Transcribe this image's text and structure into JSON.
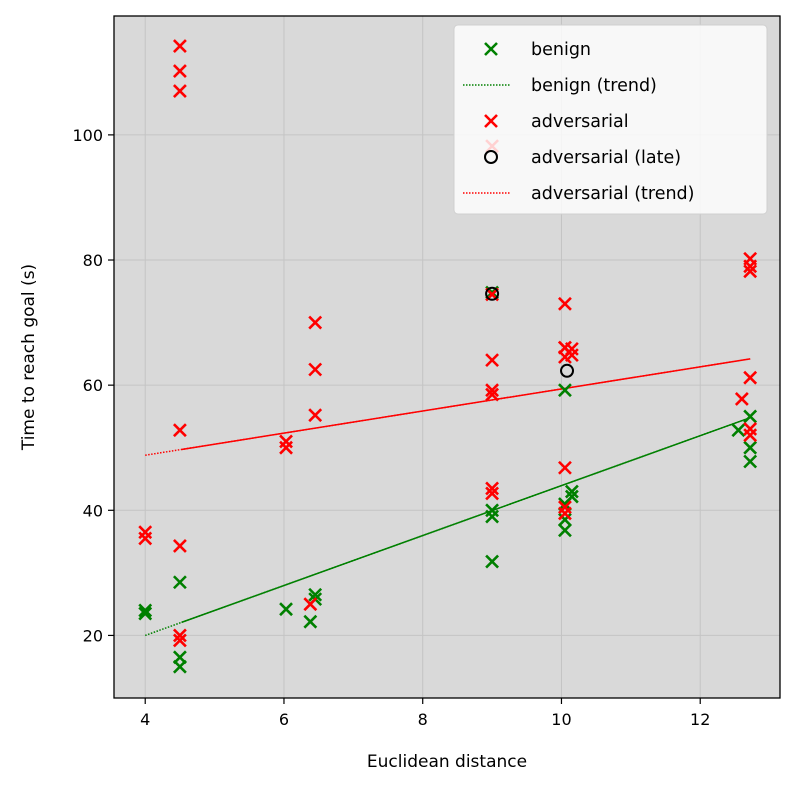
{
  "chart_data": {
    "type": "scatter",
    "xlabel": "Euclidean distance",
    "ylabel": "Time to reach goal (s)",
    "xlim": [
      3.55,
      13.15
    ],
    "ylim": [
      10,
      119
    ],
    "xticks": [
      4,
      6,
      8,
      10,
      12
    ],
    "yticks": [
      20,
      40,
      60,
      80,
      100
    ],
    "grid": true,
    "legend_position": "top-right",
    "colors": {
      "plot_bg": "#d9d9d9",
      "grid": "#c4c4c4",
      "benign": "#008000",
      "adversarial": "#ff0000",
      "late": "#000000"
    },
    "legend": [
      {
        "key": "benign",
        "label": "benign",
        "marker": "x",
        "color": "#008000"
      },
      {
        "key": "benign_trend",
        "label": "benign (trend)",
        "marker": "dotted-line",
        "color": "#008000"
      },
      {
        "key": "adversarial",
        "label": "adversarial",
        "marker": "x",
        "color": "#ff0000"
      },
      {
        "key": "adversarial_late",
        "label": "adversarial (late)",
        "marker": "circle",
        "color": "#000000"
      },
      {
        "key": "adversarial_trend",
        "label": "adversarial (trend)",
        "marker": "dotted-line",
        "color": "#ff0000"
      }
    ],
    "series": [
      {
        "name": "benign",
        "marker": "x",
        "color": "#008000",
        "x": [
          4.0,
          4.0,
          4.5,
          4.5,
          4.5,
          6.03,
          6.38,
          6.45,
          6.45,
          9.0,
          9.0,
          9.0,
          9.0,
          10.05,
          10.05,
          10.05,
          10.05,
          10.15,
          10.15,
          12.55,
          12.72,
          12.72,
          12.72
        ],
        "y": [
          23.5,
          24.0,
          28.5,
          16.5,
          15.0,
          24.2,
          22.2,
          26.5,
          25.8,
          74.8,
          40.0,
          39.0,
          31.8,
          59.2,
          41.0,
          38.5,
          36.8,
          43.0,
          42.2,
          52.8,
          55.0,
          50.0,
          47.8
        ]
      },
      {
        "name": "adversarial",
        "marker": "x",
        "color": "#ff0000",
        "x": [
          4.0,
          4.0,
          4.5,
          4.5,
          4.5,
          4.5,
          4.5,
          4.5,
          4.5,
          6.03,
          6.03,
          6.38,
          6.45,
          6.45,
          6.45,
          9.0,
          9.0,
          9.0,
          9.0,
          9.0,
          9.0,
          9.0,
          10.05,
          10.05,
          10.05,
          10.05,
          10.05,
          10.05,
          10.05,
          10.15,
          10.15,
          12.6,
          12.72,
          12.72,
          12.72,
          12.72,
          12.72,
          12.72
        ],
        "y": [
          36.5,
          35.5,
          114.2,
          110.2,
          107.0,
          52.8,
          34.3,
          20.0,
          19.2,
          51.0,
          50.0,
          25.0,
          70.0,
          62.5,
          55.2,
          98.2,
          64.0,
          59.2,
          58.5,
          43.5,
          42.7,
          74.5,
          73.0,
          66.0,
          64.5,
          46.8,
          40.5,
          39.5,
          66.0,
          64.8,
          65.8,
          57.8,
          80.2,
          79.0,
          78.2,
          61.2,
          53.0,
          52.0
        ]
      },
      {
        "name": "adversarial (late)",
        "marker": "circle",
        "color": "#000000",
        "x": [
          9.0,
          10.08
        ],
        "y": [
          74.6,
          62.3
        ]
      },
      {
        "name": "benign (trend)",
        "type": "line",
        "style": "dotted",
        "color": "#008000",
        "x": [
          4.0,
          12.72
        ],
        "y": [
          20.0,
          54.8
        ]
      },
      {
        "name": "adversarial (trend)",
        "type": "line",
        "style": "dotted",
        "color": "#ff0000",
        "x": [
          4.0,
          12.72
        ],
        "y": [
          48.8,
          64.2
        ]
      }
    ]
  }
}
